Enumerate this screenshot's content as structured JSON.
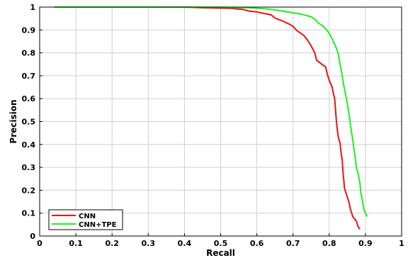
{
  "chart_data": {
    "type": "line",
    "title": "",
    "xlabel": "Recall",
    "ylabel": "Precision",
    "xlim": [
      0,
      1
    ],
    "ylim": [
      0,
      1
    ],
    "xticks": [
      "0",
      "0.1",
      "0.2",
      "0.3",
      "0.4",
      "0.5",
      "0.6",
      "0.7",
      "0.8",
      "0.9",
      "1"
    ],
    "yticks": [
      "0",
      "0.1",
      "0.2",
      "0.3",
      "0.4",
      "0.5",
      "0.6",
      "0.7",
      "0.8",
      "0.9",
      "1"
    ],
    "grid": true,
    "legend": "bottom-left",
    "series": [
      {
        "name": "CNN",
        "color": "#ee1111",
        "points": [
          [
            0.04,
            1.0
          ],
          [
            0.2,
            1.0
          ],
          [
            0.4,
            1.0
          ],
          [
            0.45,
            0.997
          ],
          [
            0.53,
            0.994
          ],
          [
            0.56,
            0.99
          ],
          [
            0.58,
            0.982
          ],
          [
            0.6,
            0.979
          ],
          [
            0.62,
            0.972
          ],
          [
            0.64,
            0.966
          ],
          [
            0.65,
            0.952
          ],
          [
            0.67,
            0.94
          ],
          [
            0.69,
            0.925
          ],
          [
            0.7,
            0.916
          ],
          [
            0.71,
            0.898
          ],
          [
            0.73,
            0.876
          ],
          [
            0.74,
            0.856
          ],
          [
            0.75,
            0.83
          ],
          [
            0.76,
            0.8
          ],
          [
            0.765,
            0.768
          ],
          [
            0.78,
            0.75
          ],
          [
            0.79,
            0.738
          ],
          [
            0.795,
            0.706
          ],
          [
            0.8,
            0.68
          ],
          [
            0.808,
            0.65
          ],
          [
            0.812,
            0.62
          ],
          [
            0.815,
            0.6
          ],
          [
            0.817,
            0.558
          ],
          [
            0.82,
            0.5
          ],
          [
            0.822,
            0.47
          ],
          [
            0.825,
            0.432
          ],
          [
            0.83,
            0.405
          ],
          [
            0.833,
            0.36
          ],
          [
            0.836,
            0.33
          ],
          [
            0.838,
            0.28
          ],
          [
            0.84,
            0.25
          ],
          [
            0.842,
            0.21
          ],
          [
            0.848,
            0.18
          ],
          [
            0.852,
            0.16
          ],
          [
            0.855,
            0.145
          ],
          [
            0.858,
            0.12
          ],
          [
            0.862,
            0.1
          ],
          [
            0.865,
            0.085
          ],
          [
            0.875,
            0.065
          ],
          [
            0.88,
            0.04
          ],
          [
            0.885,
            0.03
          ]
        ]
      },
      {
        "name": "CNN+TPE",
        "color": "#22ee22",
        "points": [
          [
            0.04,
            1.0
          ],
          [
            0.3,
            1.0
          ],
          [
            0.5,
            0.999
          ],
          [
            0.58,
            0.997
          ],
          [
            0.63,
            0.992
          ],
          [
            0.66,
            0.985
          ],
          [
            0.7,
            0.975
          ],
          [
            0.72,
            0.97
          ],
          [
            0.74,
            0.962
          ],
          [
            0.75,
            0.958
          ],
          [
            0.76,
            0.948
          ],
          [
            0.77,
            0.93
          ],
          [
            0.78,
            0.92
          ],
          [
            0.79,
            0.906
          ],
          [
            0.8,
            0.885
          ],
          [
            0.81,
            0.855
          ],
          [
            0.82,
            0.82
          ],
          [
            0.825,
            0.795
          ],
          [
            0.83,
            0.75
          ],
          [
            0.835,
            0.71
          ],
          [
            0.84,
            0.66
          ],
          [
            0.845,
            0.62
          ],
          [
            0.85,
            0.58
          ],
          [
            0.855,
            0.53
          ],
          [
            0.86,
            0.47
          ],
          [
            0.865,
            0.42
          ],
          [
            0.87,
            0.36
          ],
          [
            0.873,
            0.33
          ],
          [
            0.875,
            0.3
          ],
          [
            0.88,
            0.27
          ],
          [
            0.885,
            0.23
          ],
          [
            0.887,
            0.19
          ],
          [
            0.89,
            0.17
          ],
          [
            0.893,
            0.14
          ],
          [
            0.897,
            0.11
          ],
          [
            0.9,
            0.1
          ],
          [
            0.905,
            0.085
          ]
        ]
      }
    ]
  }
}
